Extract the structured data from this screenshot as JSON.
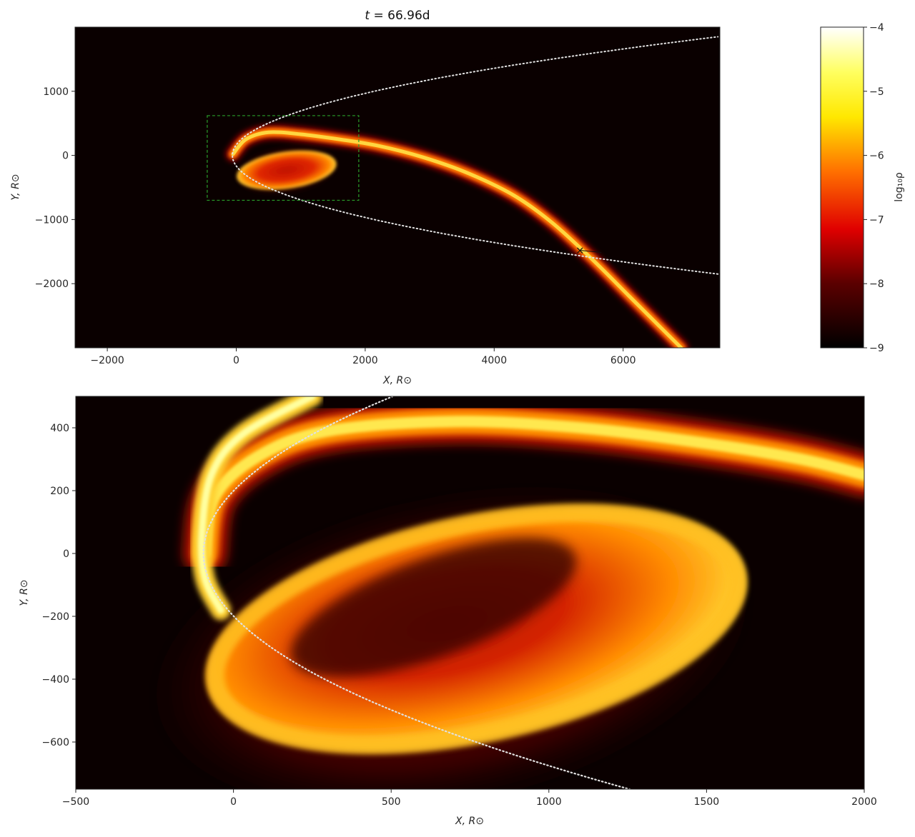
{
  "chart_data": [
    {
      "type": "heatmap",
      "title": "t = 66.96d",
      "xlabel": "X, R⊙",
      "ylabel": "Y, R⊙",
      "xlim": [
        -2500,
        7500
      ],
      "ylim": [
        -3000,
        2000
      ],
      "xticks": [
        -2000,
        0,
        2000,
        4000,
        6000
      ],
      "yticks": [
        -2000,
        -1000,
        0,
        1000
      ],
      "xtick_labels": [
        "−2000",
        "0",
        "2000",
        "4000",
        "6000"
      ],
      "ytick_labels": [
        "−2000",
        "−1000",
        "0",
        "1000"
      ],
      "colormap": "hot",
      "zoom_box": {
        "x": [
          -450,
          1900
        ],
        "y": [
          -700,
          620
        ],
        "color": "#2aa02a"
      },
      "orbit_color": "#e0e0e0",
      "marker": {
        "x": 5330,
        "y": -1480,
        "symbol": "×"
      },
      "stream_path": [
        [
          -50,
          20
        ],
        [
          150,
          250
        ],
        [
          500,
          360
        ],
        [
          1000,
          330
        ],
        [
          1600,
          250
        ],
        [
          2200,
          150
        ],
        [
          2900,
          -30
        ],
        [
          3600,
          -280
        ],
        [
          4300,
          -620
        ],
        [
          4900,
          -1050
        ],
        [
          5500,
          -1600
        ],
        [
          6100,
          -2200
        ],
        [
          6600,
          -2700
        ],
        [
          6900,
          -3000
        ]
      ],
      "disk": {
        "cx": 780,
        "cy": -230,
        "rx": 780,
        "ry": 290,
        "angle_deg": -8
      }
    },
    {
      "type": "heatmap",
      "xlabel": "X, R⊙",
      "ylabel": "Y, R⊙",
      "xlim": [
        -500,
        2000
      ],
      "ylim": [
        -750,
        500
      ],
      "xticks": [
        -500,
        0,
        500,
        1000,
        1500,
        2000
      ],
      "yticks": [
        -600,
        -400,
        -200,
        0,
        200,
        400
      ],
      "xtick_labels": [
        "−500",
        "0",
        "500",
        "1000",
        "1500",
        "2000"
      ],
      "ytick_labels": [
        "−600",
        "−400",
        "−200",
        "0",
        "200",
        "400"
      ],
      "colormap": "hot",
      "orbit_color": "#e0e0e0",
      "outer_stream": [
        [
          250,
          500
        ],
        [
          30,
          380
        ],
        [
          -70,
          250
        ],
        [
          -100,
          60
        ],
        [
          -90,
          -80
        ],
        [
          -40,
          -180
        ]
      ],
      "top_arc": [
        [
          -90,
          0
        ],
        [
          -60,
          180
        ],
        [
          80,
          310
        ],
        [
          300,
          390
        ],
        [
          700,
          420
        ],
        [
          1100,
          400
        ],
        [
          1500,
          350
        ],
        [
          1800,
          300
        ],
        [
          2000,
          250
        ]
      ],
      "disk": {
        "cx": 770,
        "cy": -240,
        "rx": 870,
        "ry": 350,
        "angle_deg": -12
      }
    }
  ],
  "colorbar": {
    "label": "log₁₀ρ",
    "ticks": [
      -4,
      -5,
      -6,
      -7,
      -8,
      -9
    ],
    "tick_labels": [
      "−4",
      "−5",
      "−6",
      "−7",
      "−8",
      "−9"
    ],
    "range": [
      -9,
      -4
    ]
  }
}
